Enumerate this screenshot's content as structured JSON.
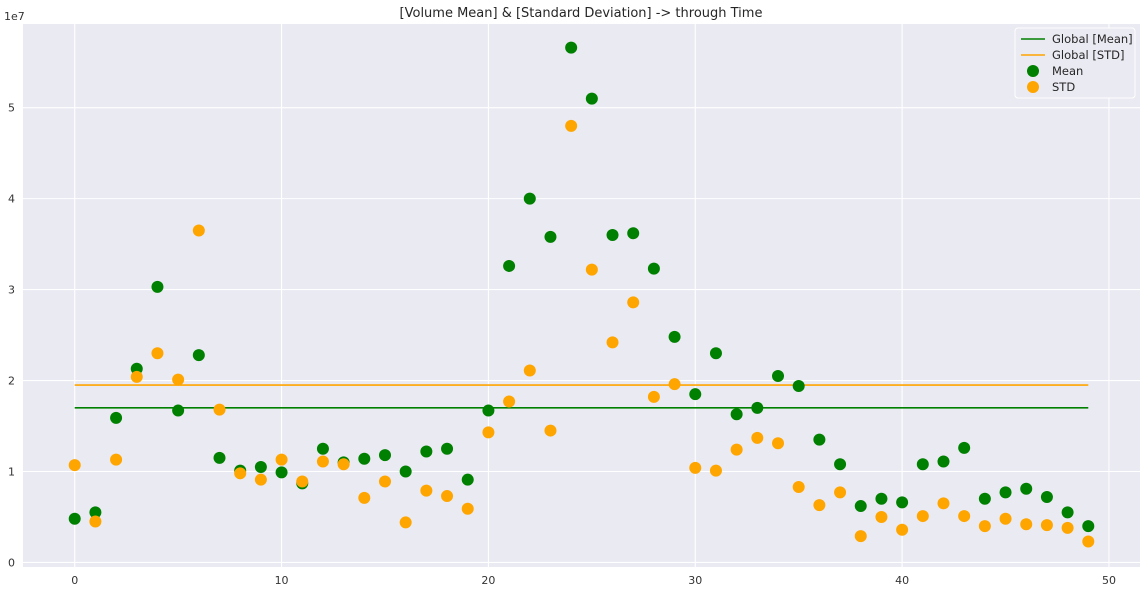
{
  "chart_data": {
    "type": "scatter",
    "title": "[Volume Mean] & [Standard Deviation] -> through Time",
    "xlabel": "",
    "ylabel": "",
    "y_offset_label": "1e7",
    "xlim": [
      -2.5,
      51.5
    ],
    "ylim": [
      -0.05,
      5.92
    ],
    "x_ticks": [
      0,
      10,
      20,
      30,
      40,
      50
    ],
    "y_ticks": [
      0,
      1,
      2,
      3,
      4,
      5
    ],
    "grid": true,
    "legend_position": "top-right",
    "x": [
      0,
      1,
      2,
      3,
      4,
      5,
      6,
      7,
      8,
      9,
      10,
      11,
      12,
      13,
      14,
      15,
      16,
      17,
      18,
      19,
      20,
      21,
      22,
      23,
      24,
      25,
      26,
      27,
      28,
      29,
      30,
      31,
      32,
      33,
      34,
      35,
      36,
      37,
      38,
      39,
      40,
      41,
      42,
      43,
      44,
      45,
      46,
      47,
      48,
      49
    ],
    "series": [
      {
        "name": "Mean",
        "color": "#008000",
        "marker": "dot",
        "values": [
          0.48,
          0.55,
          1.59,
          2.13,
          3.03,
          1.67,
          2.28,
          1.15,
          1.01,
          1.05,
          0.99,
          0.87,
          1.25,
          1.1,
          1.14,
          1.18,
          1.0,
          1.22,
          1.25,
          0.91,
          1.67,
          3.26,
          4.0,
          3.58,
          5.66,
          5.1,
          3.6,
          3.62,
          3.23,
          2.48,
          1.85,
          2.3,
          1.63,
          1.7,
          2.05,
          1.94,
          1.35,
          1.08,
          0.62,
          0.7,
          0.66,
          1.08,
          1.11,
          1.26,
          0.7,
          0.77,
          0.81,
          0.72,
          0.55,
          0.4
        ]
      },
      {
        "name": "STD",
        "color": "#ffa500",
        "marker": "dot",
        "values": [
          1.07,
          0.45,
          1.13,
          2.04,
          2.3,
          2.01,
          3.65,
          1.68,
          0.98,
          0.91,
          1.13,
          0.89,
          1.11,
          1.08,
          0.71,
          0.89,
          0.44,
          0.79,
          0.73,
          0.59,
          1.43,
          1.77,
          2.11,
          1.45,
          4.8,
          3.22,
          2.42,
          2.86,
          1.82,
          1.96,
          1.04,
          1.01,
          1.24,
          1.37,
          1.31,
          0.83,
          0.63,
          0.77,
          0.29,
          0.5,
          0.36,
          0.51,
          0.65,
          0.51,
          0.4,
          0.48,
          0.42,
          0.41,
          0.38,
          0.23
        ]
      },
      {
        "name": "Global [Mean]",
        "color": "#008000",
        "marker": "line",
        "x_range": [
          0,
          49
        ],
        "constant": 1.7
      },
      {
        "name": "Global [STD]",
        "color": "#ffa500",
        "marker": "line",
        "x_range": [
          0,
          49
        ],
        "constant": 1.95
      }
    ],
    "legend": [
      "Global [Mean]",
      "Global [STD]",
      "Mean",
      "STD"
    ]
  }
}
